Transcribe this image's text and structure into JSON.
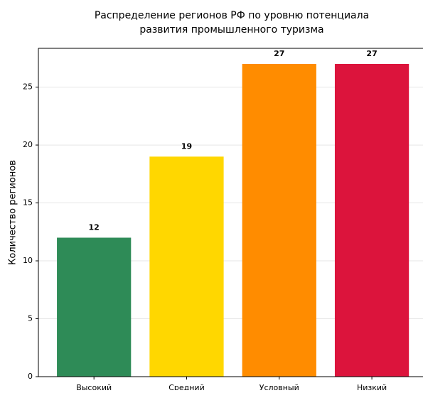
{
  "chart_data": {
    "type": "bar",
    "title": [
      "Распределение регионов РФ по уровню потенциала",
      "развития промышленного туризма"
    ],
    "ylabel": "Количество регионов",
    "categories": [
      "Высокий",
      "Средний",
      "Условный",
      "Низкий"
    ],
    "values": [
      12,
      19,
      27,
      27
    ],
    "colors": [
      "#2e8b57",
      "#ffd700",
      "#ff8c00",
      "#dc143c"
    ],
    "ylim": [
      0,
      28.35
    ],
    "yticks": [
      0,
      5,
      10,
      15,
      20,
      25
    ],
    "grid": true
  }
}
